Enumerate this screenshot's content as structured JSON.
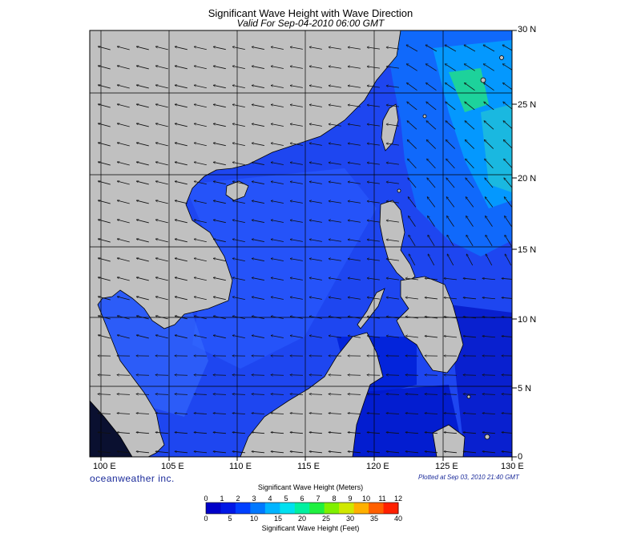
{
  "title": "Significant Wave Height with Wave Direction",
  "subtitle": "Valid For Sep-04-2010 06:00 GMT",
  "lat_labels": [
    "30 N",
    "25 N",
    "20 N",
    "15 N",
    "10 N",
    "5 N",
    "0"
  ],
  "lon_labels": [
    "100 E",
    "105 E",
    "110 E",
    "115 E",
    "120 E",
    "125 E",
    "130 E"
  ],
  "brand": "oceanweather inc.",
  "plotted_note": "Plotted at Sep 03, 2010 21:40 GMT",
  "legend": {
    "title_meters": "Significant Wave Height (Meters)",
    "title_feet": "Significant Wave Height (Feet)",
    "meter_ticks": [
      "0",
      "1",
      "2",
      "3",
      "4",
      "5",
      "6",
      "7",
      "8",
      "9",
      "10",
      "11",
      "12"
    ],
    "feet_ticks": [
      "0",
      "5",
      "10",
      "15",
      "20",
      "25",
      "30",
      "35",
      "40"
    ],
    "colors": [
      "#0000c8",
      "#0018e6",
      "#0040ff",
      "#0078ff",
      "#00b4ff",
      "#00e0f0",
      "#00f0a0",
      "#20f040",
      "#80f000",
      "#d0e800",
      "#ffb000",
      "#ff6000",
      "#ff2000"
    ]
  },
  "colors": {
    "land": "#c0c0c0",
    "sea_base": "#1e46f0",
    "sea_deep": "#0010c0",
    "arrow": "#101010",
    "grid": "#000000"
  },
  "map_extent": {
    "lon_min": 99,
    "lon_max": 130,
    "lat_min": 0,
    "lat_max": 30
  }
}
